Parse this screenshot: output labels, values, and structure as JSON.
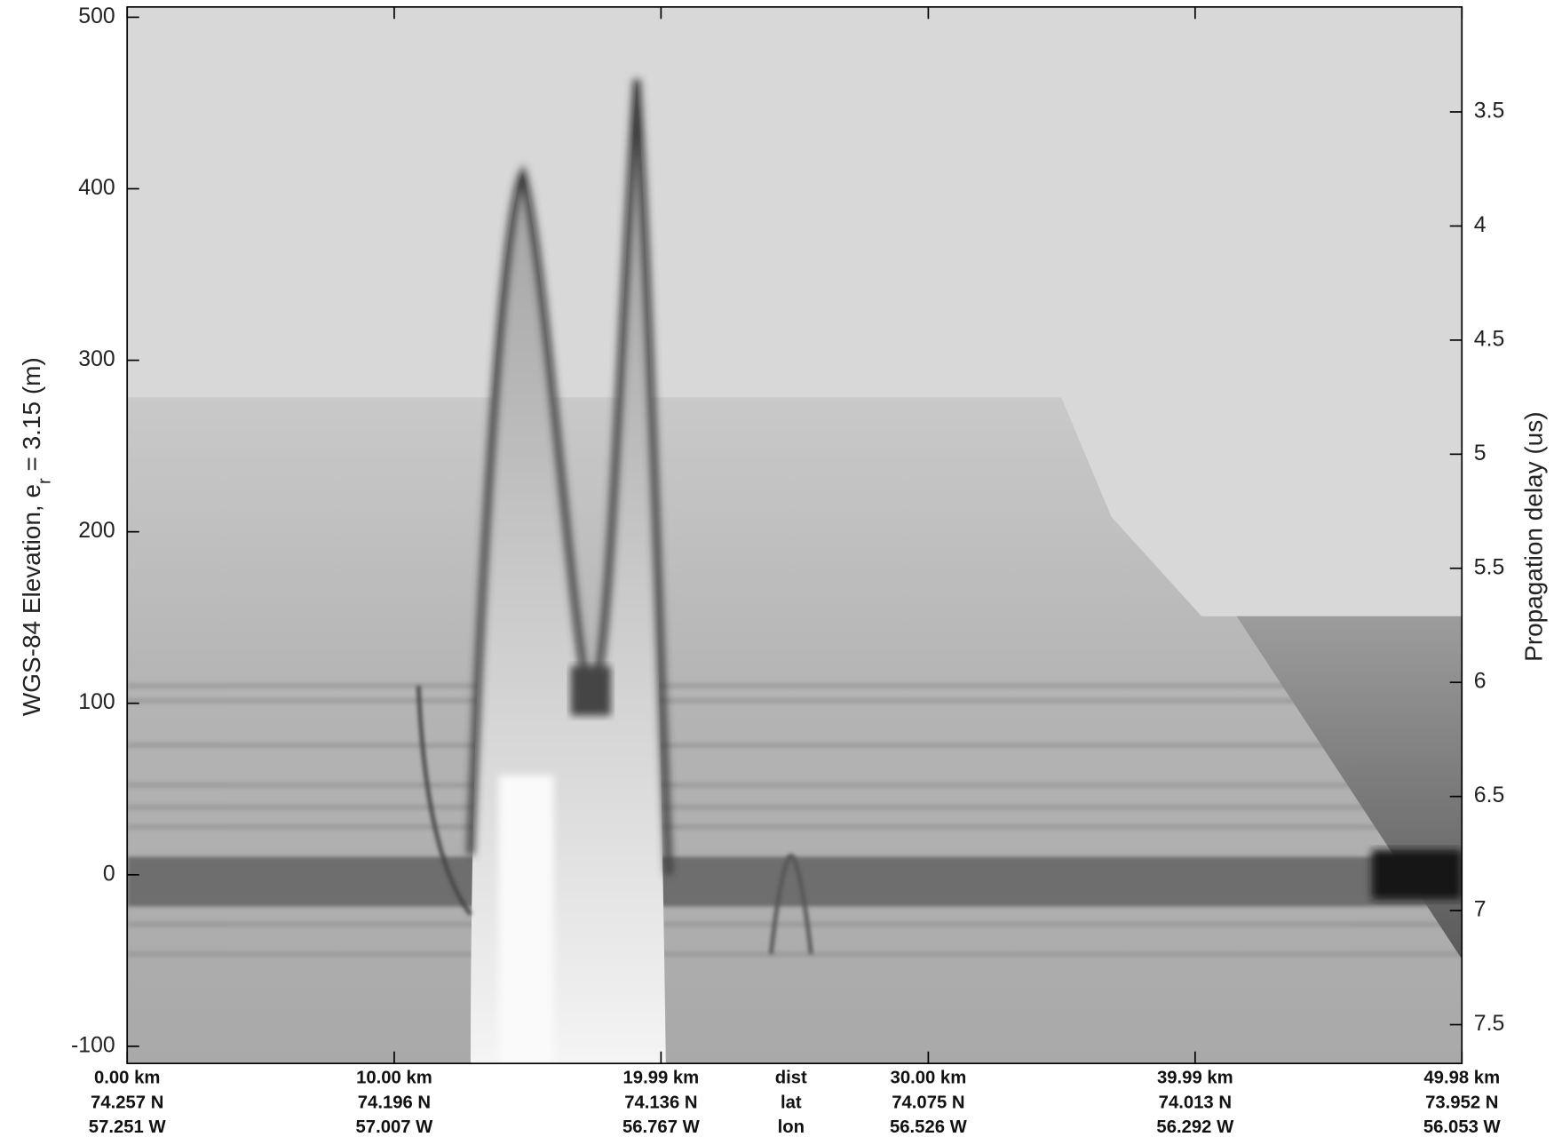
{
  "chart_data": {
    "type": "echogram",
    "ylabel": {
      "text": "WGS-84 Elevation, e",
      "subscript": "r",
      "suffix": " = 3.15 (m)"
    },
    "y2label": "Propagation delay (us)",
    "xlim": [
      0,
      49.98
    ],
    "ylim": [
      -110,
      506
    ],
    "y2lim": [
      7.67,
      3.04
    ],
    "yticks": [
      -100,
      0,
      100,
      200,
      300,
      400,
      500
    ],
    "y2ticks": [
      3.5,
      4,
      4.5,
      5,
      5.5,
      6,
      6.5,
      7,
      7.5
    ],
    "xticks": [
      {
        "value": 0,
        "label": "0.00 km"
      },
      {
        "value": 10,
        "label": "10.00 km"
      },
      {
        "value": 19.99,
        "label": "19.99 km"
      },
      {
        "value": 30,
        "label": "30.00 km"
      },
      {
        "value": 39.99,
        "label": "39.99 km"
      },
      {
        "value": 49.98,
        "label": "49.98 km"
      }
    ],
    "lat_labels": [
      "74.257 N",
      "74.196 N",
      "74.136 N",
      "74.075 N",
      "74.013 N",
      "73.952 N"
    ],
    "lon_labels": [
      "57.251 W",
      "57.007 W",
      "56.767 W",
      "56.526 W",
      "56.292 W",
      "56.053 W"
    ],
    "row_labels": [
      "dist",
      "lat",
      "lon"
    ],
    "colormap": "gray"
  }
}
